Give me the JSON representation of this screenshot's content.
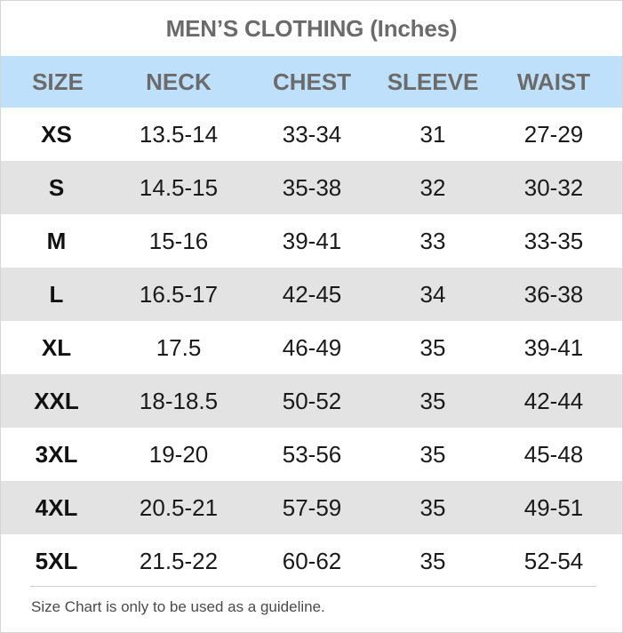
{
  "title": "MEN’S CLOTHING (Inches)",
  "colors": {
    "header_bg": "#bfe0fb",
    "row_shade": "#e3e3e3",
    "header_text": "#6b6b6b"
  },
  "columns": [
    "SIZE",
    "NECK",
    "CHEST",
    "SLEEVE",
    "WAIST"
  ],
  "rows": [
    [
      "XS",
      "13.5-14",
      "33-34",
      "31",
      "27-29"
    ],
    [
      "S",
      "14.5-15",
      "35-38",
      "32",
      "30-32"
    ],
    [
      "M",
      "15-16",
      "39-41",
      "33",
      "33-35"
    ],
    [
      "L",
      "16.5-17",
      "42-45",
      "34",
      "36-38"
    ],
    [
      "XL",
      "17.5",
      "46-49",
      "35",
      "39-41"
    ],
    [
      "XXL",
      "18-18.5",
      "50-52",
      "35",
      "42-44"
    ],
    [
      "3XL",
      "19-20",
      "53-56",
      "35",
      "45-48"
    ],
    [
      "4XL",
      "20.5-21",
      "57-59",
      "35",
      "49-51"
    ],
    [
      "5XL",
      "21.5-22",
      "60-62",
      "35",
      "52-54"
    ]
  ],
  "footnote": "Size Chart is only to be used as a guideline."
}
